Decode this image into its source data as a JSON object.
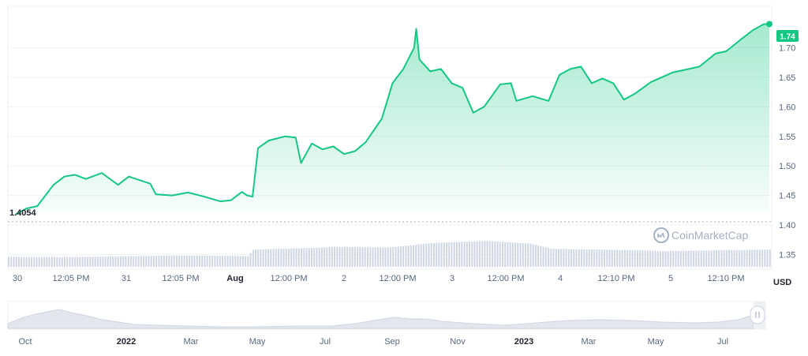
{
  "chart_data": {
    "type": "area",
    "currency_label": "USD",
    "current_price_label": "1.74",
    "baseline_label": "1.4054",
    "baseline": 1.4054,
    "ylim": [
      1.32,
      1.77
    ],
    "y_ticks": [
      "1.70",
      "1.65",
      "1.60",
      "1.55",
      "1.50",
      "1.45",
      "1.40",
      "1.35"
    ],
    "x_ticks": [
      {
        "label": "30",
        "bold": false
      },
      {
        "label": "12:05 PM",
        "bold": false
      },
      {
        "label": "31",
        "bold": false
      },
      {
        "label": "12:05 PM",
        "bold": false
      },
      {
        "label": "Aug",
        "bold": true
      },
      {
        "label": "12:00 PM",
        "bold": false
      },
      {
        "label": "2",
        "bold": false
      },
      {
        "label": "12:00 PM",
        "bold": false
      },
      {
        "label": "3",
        "bold": false
      },
      {
        "label": "12:00 PM",
        "bold": false
      },
      {
        "label": "4",
        "bold": false
      },
      {
        "label": "12:10 PM",
        "bold": false
      },
      {
        "label": "5",
        "bold": false
      },
      {
        "label": "12:10 PM",
        "bold": false
      }
    ],
    "x_range_days": [
      0,
      7
    ],
    "price_series": [
      [
        0.0,
        1.418
      ],
      [
        0.1,
        1.428
      ],
      [
        0.2,
        1.432
      ],
      [
        0.35,
        1.468
      ],
      [
        0.45,
        1.482
      ],
      [
        0.55,
        1.485
      ],
      [
        0.65,
        1.478
      ],
      [
        0.8,
        1.488
      ],
      [
        0.95,
        1.468
      ],
      [
        1.05,
        1.482
      ],
      [
        1.15,
        1.476
      ],
      [
        1.25,
        1.47
      ],
      [
        1.3,
        1.452
      ],
      [
        1.45,
        1.45
      ],
      [
        1.6,
        1.455
      ],
      [
        1.75,
        1.448
      ],
      [
        1.9,
        1.44
      ],
      [
        2.0,
        1.442
      ],
      [
        2.1,
        1.456
      ],
      [
        2.15,
        1.45
      ],
      [
        2.2,
        1.448
      ],
      [
        2.25,
        1.53
      ],
      [
        2.35,
        1.543
      ],
      [
        2.5,
        1.55
      ],
      [
        2.6,
        1.548
      ],
      [
        2.65,
        1.505
      ],
      [
        2.75,
        1.538
      ],
      [
        2.85,
        1.528
      ],
      [
        2.95,
        1.533
      ],
      [
        3.05,
        1.52
      ],
      [
        3.15,
        1.525
      ],
      [
        3.25,
        1.54
      ],
      [
        3.4,
        1.58
      ],
      [
        3.5,
        1.64
      ],
      [
        3.6,
        1.664
      ],
      [
        3.7,
        1.7
      ],
      [
        3.72,
        1.732
      ],
      [
        3.75,
        1.68
      ],
      [
        3.85,
        1.66
      ],
      [
        3.95,
        1.664
      ],
      [
        4.05,
        1.64
      ],
      [
        4.15,
        1.632
      ],
      [
        4.25,
        1.59
      ],
      [
        4.35,
        1.6
      ],
      [
        4.5,
        1.638
      ],
      [
        4.6,
        1.64
      ],
      [
        4.65,
        1.61
      ],
      [
        4.8,
        1.618
      ],
      [
        4.95,
        1.61
      ],
      [
        5.05,
        1.654
      ],
      [
        5.15,
        1.664
      ],
      [
        5.25,
        1.668
      ],
      [
        5.35,
        1.64
      ],
      [
        5.45,
        1.648
      ],
      [
        5.55,
        1.64
      ],
      [
        5.65,
        1.612
      ],
      [
        5.75,
        1.622
      ],
      [
        5.9,
        1.642
      ],
      [
        6.0,
        1.65
      ],
      [
        6.1,
        1.658
      ],
      [
        6.2,
        1.662
      ],
      [
        6.35,
        1.668
      ],
      [
        6.5,
        1.69
      ],
      [
        6.6,
        1.694
      ],
      [
        6.75,
        1.716
      ],
      [
        6.85,
        1.73
      ],
      [
        6.95,
        1.74
      ],
      [
        7.0,
        1.74
      ]
    ],
    "volume_scale": [
      0,
      1
    ],
    "volume_levels": [
      [
        0.0,
        0.3
      ],
      [
        0.5,
        0.29
      ],
      [
        1.0,
        0.31
      ],
      [
        1.5,
        0.34
      ],
      [
        2.0,
        0.33
      ],
      [
        2.2,
        0.32
      ],
      [
        2.25,
        0.52
      ],
      [
        2.9,
        0.58
      ],
      [
        3.0,
        0.6
      ],
      [
        3.5,
        0.58
      ],
      [
        3.7,
        0.65
      ],
      [
        3.9,
        0.72
      ],
      [
        4.4,
        0.78
      ],
      [
        4.8,
        0.7
      ],
      [
        5.0,
        0.54
      ],
      [
        5.8,
        0.5
      ],
      [
        6.0,
        0.47
      ],
      [
        7.0,
        0.52
      ]
    ],
    "navigator_x_ticks": [
      {
        "label": "Oct",
        "bold": false
      },
      {
        "label": "2022",
        "bold": true
      },
      {
        "label": "Mar",
        "bold": false
      },
      {
        "label": "May",
        "bold": false
      },
      {
        "label": "Jul",
        "bold": false
      },
      {
        "label": "Sep",
        "bold": false
      },
      {
        "label": "Nov",
        "bold": false
      },
      {
        "label": "2023",
        "bold": true
      },
      {
        "label": "Mar",
        "bold": false
      },
      {
        "label": "May",
        "bold": false
      },
      {
        "label": "Jul",
        "bold": false
      }
    ]
  },
  "watermark": {
    "brand_name": "CoinMarketCap"
  },
  "colors": {
    "line": "#16c784",
    "area_top": "#16c784",
    "grid": "#eff2f5",
    "volume": "#cfd6e4",
    "navigator": "#e3e6ec",
    "label_bg": "#16c784"
  }
}
